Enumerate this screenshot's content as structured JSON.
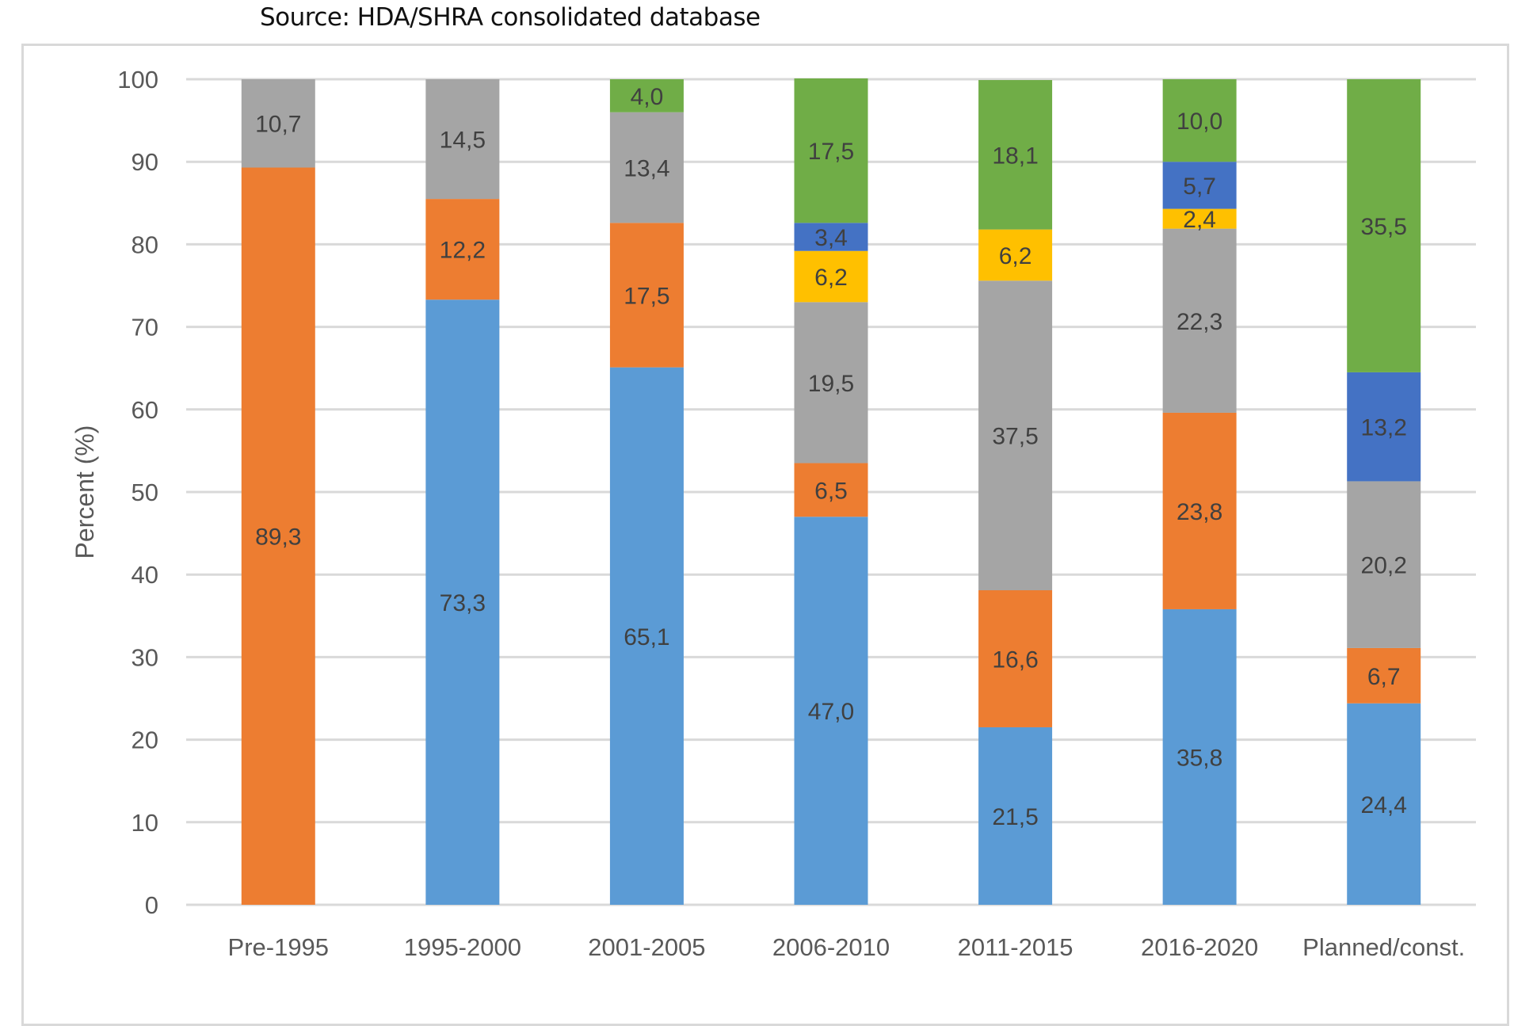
{
  "source_text": "Source: HDA/SHRA consolidated database",
  "chart_data": {
    "type": "bar",
    "stacked": true,
    "title": "",
    "xlabel": "",
    "ylabel": "Percent (%)",
    "ylim": [
      0,
      100
    ],
    "yticks": [
      0,
      10,
      20,
      30,
      40,
      50,
      60,
      70,
      80,
      90,
      100
    ],
    "grid": true,
    "legend": "none visible",
    "decimal_separator": ",",
    "categories": [
      "Pre-1995",
      "1995-2000",
      "2001-2005",
      "2006-2010",
      "2011-2015",
      "2016-2020",
      "Planned/const."
    ],
    "series": [
      {
        "name": "",
        "color": "#5B9BD5",
        "values": [
          0,
          73.3,
          65.1,
          47.0,
          21.5,
          35.8,
          24.4
        ]
      },
      {
        "name": "",
        "color": "#ED7D31",
        "values": [
          89.3,
          12.2,
          17.5,
          6.5,
          16.6,
          23.8,
          6.7
        ]
      },
      {
        "name": "",
        "color": "#A5A5A5",
        "values": [
          10.7,
          14.5,
          13.4,
          19.5,
          37.5,
          22.3,
          20.2
        ]
      },
      {
        "name": "",
        "color": "#FFC000",
        "values": [
          0,
          0,
          0,
          6.2,
          6.2,
          2.4,
          0
        ]
      },
      {
        "name": "",
        "color": "#4472C4",
        "values": [
          0,
          0,
          0,
          3.4,
          0,
          5.7,
          13.2
        ]
      },
      {
        "name": "",
        "color": "#70AD47",
        "values": [
          0,
          0,
          4.0,
          17.5,
          18.1,
          10.0,
          35.5
        ]
      }
    ]
  }
}
